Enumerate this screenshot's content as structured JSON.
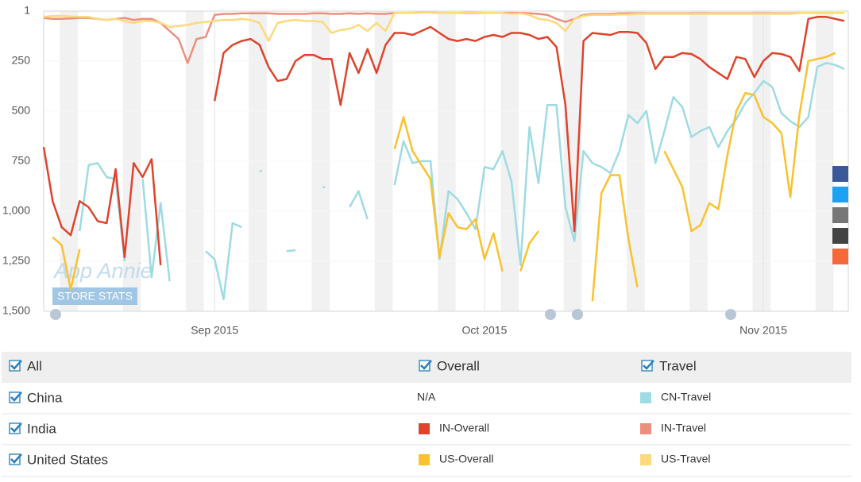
{
  "chart_data": {
    "type": "line",
    "categories": [
      null,
      null,
      null,
      null,
      null,
      null,
      null,
      null,
      null,
      null,
      null,
      null,
      null,
      null,
      null,
      null,
      null,
      null,
      null,
      "Sep 2015",
      null,
      null,
      null,
      null,
      null,
      null,
      null,
      null,
      null,
      null,
      null,
      null,
      null,
      null,
      null,
      null,
      null,
      null,
      null,
      null,
      null,
      null,
      null,
      null,
      null,
      null,
      null,
      null,
      null,
      "Oct 2015",
      null,
      null,
      null,
      null,
      null,
      null,
      null,
      null,
      null,
      null,
      null,
      null,
      null,
      null,
      null,
      null,
      null,
      null,
      null,
      null,
      null,
      null,
      null,
      null,
      null,
      null,
      null,
      null,
      null,
      null,
      "Nov 2015",
      null,
      null,
      null,
      null,
      null,
      null,
      null,
      null,
      null
    ],
    "series": [
      {
        "name": "CN-Travel",
        "color": "#9fdbe2",
        "values": [
          null,
          null,
          null,
          null,
          1100,
          770,
          760,
          830,
          840,
          1250,
          null,
          840,
          1330,
          960,
          1350,
          null,
          null,
          null,
          1200,
          1240,
          1440,
          1060,
          1080,
          null,
          800,
          null,
          null,
          1200,
          1195,
          null,
          null,
          880,
          null,
          null,
          980,
          900,
          1040,
          null,
          null,
          870,
          650,
          760,
          750,
          750,
          1240,
          900,
          940,
          1010,
          1090,
          780,
          790,
          700,
          850,
          1270,
          580,
          860,
          470,
          470,
          980,
          1150,
          700,
          760,
          780,
          810,
          700,
          520,
          560,
          500,
          760,
          600,
          430,
          480,
          630,
          600,
          580,
          680,
          600,
          540,
          460,
          410,
          350,
          380,
          510,
          550,
          580,
          530,
          280,
          260,
          270,
          290
        ]
      },
      {
        "name": "IN-Overall",
        "color": "#e0432b",
        "values": [
          680,
          950,
          1080,
          1120,
          950,
          980,
          1050,
          1060,
          790,
          1230,
          760,
          830,
          740,
          1270,
          null,
          null,
          null,
          null,
          null,
          450,
          210,
          170,
          150,
          140,
          170,
          280,
          350,
          340,
          250,
          220,
          220,
          240,
          240,
          470,
          210,
          310,
          190,
          310,
          170,
          110,
          110,
          120,
          100,
          80,
          110,
          140,
          150,
          140,
          150,
          130,
          120,
          130,
          110,
          110,
          120,
          140,
          130,
          180,
          470,
          1100,
          150,
          110,
          115,
          120,
          105,
          105,
          110,
          160,
          290,
          230,
          230,
          210,
          215,
          240,
          280,
          310,
          340,
          230,
          240,
          330,
          250,
          210,
          215,
          230,
          300,
          40,
          30,
          30,
          40,
          50
        ]
      },
      {
        "name": "IN-Travel",
        "color": "#ee8f7e",
        "values": [
          35,
          40,
          40,
          38,
          35,
          35,
          40,
          45,
          40,
          35,
          45,
          40,
          40,
          60,
          100,
          140,
          260,
          140,
          130,
          20,
          15,
          15,
          12,
          12,
          12,
          12,
          15,
          15,
          15,
          15,
          12,
          12,
          15,
          15,
          12,
          15,
          12,
          15,
          15,
          10,
          10,
          10,
          8,
          8,
          10,
          10,
          10,
          10,
          10,
          10,
          10,
          10,
          10,
          10,
          12,
          15,
          20,
          40,
          55,
          40,
          20,
          15,
          15,
          15,
          12,
          12,
          12,
          12,
          12,
          12,
          12,
          12,
          12,
          12,
          12,
          12,
          12,
          12,
          12,
          12,
          12,
          12,
          12,
          12,
          10,
          10,
          10,
          10,
          10,
          10
        ]
      },
      {
        "name": "US-Overall",
        "color": "#fbc12e",
        "values": [
          null,
          1130,
          1170,
          1390,
          1190,
          null,
          null,
          null,
          null,
          null,
          null,
          null,
          null,
          null,
          null,
          null,
          null,
          null,
          null,
          null,
          null,
          null,
          null,
          null,
          null,
          null,
          null,
          null,
          null,
          null,
          null,
          null,
          null,
          null,
          null,
          null,
          null,
          null,
          null,
          690,
          530,
          700,
          770,
          840,
          1230,
          1010,
          1080,
          1090,
          1040,
          1240,
          1110,
          1300,
          null,
          1300,
          1160,
          1100,
          null,
          null,
          null,
          null,
          null,
          1450,
          910,
          820,
          820,
          1140,
          1380,
          null,
          null,
          700,
          790,
          880,
          1100,
          1070,
          960,
          990,
          720,
          500,
          410,
          420,
          530,
          560,
          610,
          930,
          520,
          250,
          240,
          230,
          210,
          null
        ]
      },
      {
        "name": "US-Travel",
        "color": "#fdd97c",
        "values": [
          30,
          25,
          25,
          28,
          30,
          30,
          40,
          45,
          40,
          50,
          60,
          50,
          50,
          60,
          80,
          75,
          70,
          60,
          55,
          50,
          45,
          45,
          40,
          45,
          60,
          150,
          60,
          50,
          45,
          50,
          50,
          55,
          110,
          95,
          90,
          70,
          100,
          60,
          100,
          10,
          10,
          10,
          8,
          8,
          10,
          10,
          10,
          8,
          8,
          10,
          10,
          10,
          15,
          12,
          20,
          40,
          45,
          60,
          100,
          40,
          25,
          20,
          20,
          20,
          18,
          18,
          15,
          15,
          15,
          15,
          15,
          15,
          15,
          15,
          15,
          15,
          15,
          15,
          15,
          15,
          15,
          15,
          15,
          15,
          10,
          10,
          10,
          10,
          10,
          10
        ]
      }
    ],
    "ylim": [
      1500,
      1
    ],
    "yticks": [
      1,
      250,
      500,
      750,
      {
        "value": 1000,
        "label": "1,000"
      },
      {
        "value": 1250,
        "label": "1,250"
      },
      {
        "value": 1500,
        "label": "1,500"
      }
    ],
    "grid": true
  },
  "watermark": {
    "title": "App Annie",
    "badge": "STORE STATS"
  },
  "filters": {
    "columns": [
      "All",
      "Overall",
      "Travel"
    ],
    "rows": [
      {
        "label": "China",
        "overall": "N/A"
      },
      {
        "label": "India"
      },
      {
        "label": "United States"
      }
    ]
  }
}
